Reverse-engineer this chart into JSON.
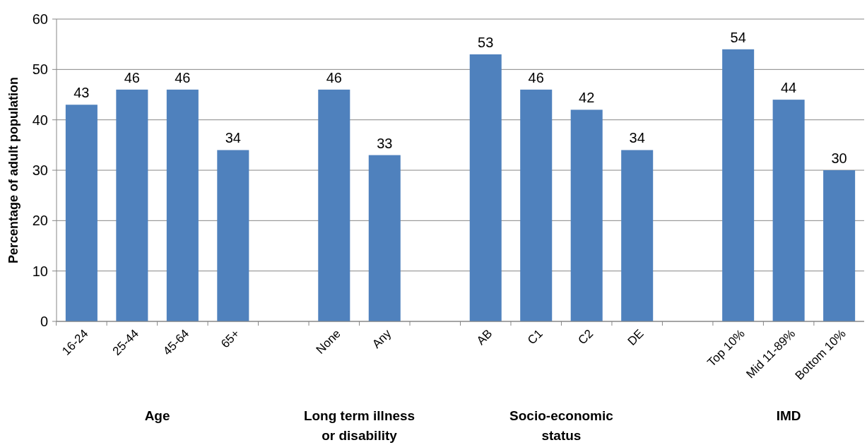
{
  "chart_data": {
    "type": "bar",
    "ylabel": "Percentage of adult population",
    "categories": [
      "16-24",
      "25-44",
      "45-64",
      "65+",
      null,
      "None",
      "Any",
      null,
      "AB",
      "C1",
      "C2",
      "DE",
      null,
      "Top 10%",
      "Mid 11-89%",
      "Bottom 10%"
    ],
    "values": [
      43,
      46,
      46,
      34,
      null,
      46,
      33,
      null,
      53,
      46,
      42,
      34,
      null,
      54,
      44,
      30
    ],
    "color": "#4f81bd",
    "data_labels": true,
    "ylim": [
      0,
      60
    ],
    "yticks": [
      0,
      10,
      20,
      30,
      40,
      50,
      60
    ],
    "grid": "y",
    "annotations": [
      "Age",
      "Long term illness\nor disability",
      "Socio-economic\nstatus",
      "IMD"
    ]
  }
}
